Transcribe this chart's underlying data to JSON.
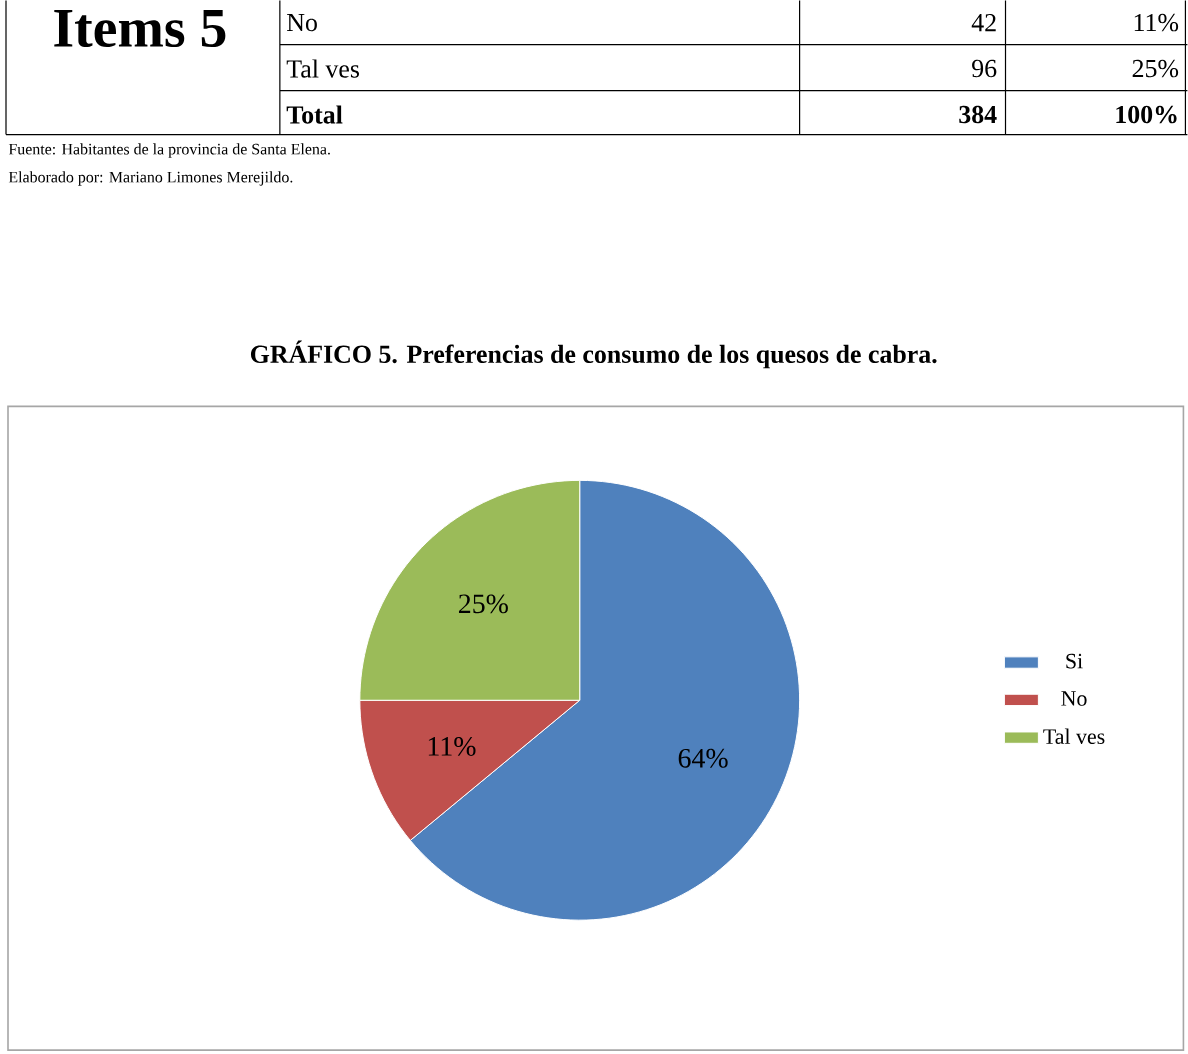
{
  "chart_data": {
    "type": "pie",
    "title": "GRÁFICO 5. Preferencias de consumo de los quesos de cabra.",
    "categories": [
      "Si",
      "No",
      "Tal ves"
    ],
    "values": [
      64,
      11,
      25
    ],
    "colors": [
      "#4f81bd",
      "#c0504d",
      "#9bbb59"
    ],
    "value_labels": [
      "64%",
      "11%",
      "25%"
    ],
    "legend": "right",
    "annotations": [
      "Items 5",
      "No",
      "42",
      "11%",
      "Tal ves",
      "96",
      "25%",
      "Total",
      "384",
      "100%",
      "Fuente: Habitantes de la  provincia de Santa Elena.",
      "Elaborado por: Mariano Limones Merejildo."
    ]
  }
}
